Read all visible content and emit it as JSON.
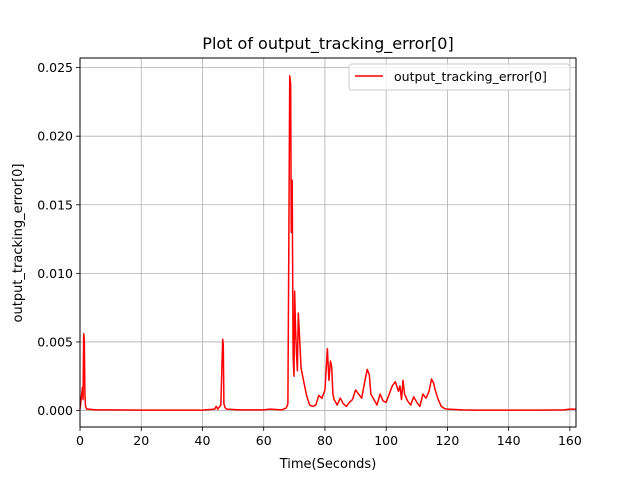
{
  "chart_data": {
    "type": "line",
    "title": "Plot of output_tracking_error[0]",
    "xlabel": "Time(Seconds)",
    "ylabel": "output_tracking_error[0]",
    "xlim": [
      0,
      162
    ],
    "ylim": [
      -0.0012,
      0.0257
    ],
    "xticks": [
      0,
      20,
      40,
      60,
      80,
      100,
      120,
      140,
      160
    ],
    "xtick_labels": [
      "0",
      "20",
      "40",
      "60",
      "80",
      "100",
      "120",
      "140",
      "160"
    ],
    "yticks": [
      0.0,
      0.005,
      0.01,
      0.015,
      0.02,
      0.025
    ],
    "ytick_labels": [
      "0.000",
      "0.005",
      "0.010",
      "0.015",
      "0.020",
      "0.025"
    ],
    "grid": true,
    "legend_position": "top-right",
    "series": [
      {
        "name": "output_tracking_error[0]",
        "color": "#ff0000",
        "x": [
          0,
          0.8,
          1.0,
          1.2,
          1.4,
          1.6,
          1.8,
          2.2,
          3,
          5,
          10,
          20,
          30,
          40,
          44,
          44.5,
          45,
          46,
          46.6,
          46.8,
          47,
          47.4,
          48,
          52,
          60,
          62,
          66,
          67.4,
          67.9,
          68.2,
          68.5,
          68.8,
          69.0,
          69.3,
          69.6,
          69.9,
          70.1,
          70.4,
          70.7,
          71.0,
          71.3,
          71.7,
          72.2,
          73,
          74,
          75,
          76,
          77,
          78,
          79,
          80,
          80.8,
          81.3,
          81.8,
          82.2,
          82.6,
          83,
          84,
          85,
          86,
          87,
          88,
          89,
          90,
          91,
          92,
          93,
          93.8,
          94.5,
          95,
          96,
          97,
          98,
          99,
          100,
          101,
          102,
          103,
          104,
          104.5,
          105,
          105.5,
          106,
          107,
          108,
          109,
          110,
          111,
          112,
          113,
          114,
          114.8,
          115.5,
          116,
          117,
          118,
          119,
          120,
          125,
          130,
          140,
          150,
          158,
          160,
          162
        ],
        "y": [
          0.0001,
          0.0017,
          0.0008,
          0.0056,
          0.0052,
          0.0012,
          0.0003,
          0.0001,
          0.0001,
          5e-05,
          5e-05,
          3e-05,
          3e-05,
          3e-05,
          0.0001,
          0.0003,
          0.0001,
          0.0004,
          0.0052,
          0.0048,
          0.0005,
          0.0002,
          0.0001,
          5e-05,
          5e-05,
          0.0001,
          5e-05,
          0.0002,
          0.0005,
          0.012,
          0.0244,
          0.0238,
          0.013,
          0.0168,
          0.004,
          0.0025,
          0.0087,
          0.006,
          0.0042,
          0.0029,
          0.0071,
          0.0054,
          0.0031,
          0.0022,
          0.0011,
          0.0004,
          0.0003,
          0.0004,
          0.0011,
          0.0009,
          0.0015,
          0.0045,
          0.0022,
          0.0036,
          0.0032,
          0.0012,
          0.0008,
          0.0004,
          0.0009,
          0.0005,
          0.0003,
          0.0006,
          0.0008,
          0.0015,
          0.0012,
          0.0009,
          0.0021,
          0.003,
          0.0026,
          0.0012,
          0.0008,
          0.0004,
          0.0012,
          0.0007,
          0.0006,
          0.0012,
          0.0018,
          0.0021,
          0.0014,
          0.0018,
          0.0008,
          0.0022,
          0.0012,
          0.0007,
          0.0004,
          0.001,
          0.0006,
          0.0003,
          0.0012,
          0.0009,
          0.0014,
          0.0023,
          0.002,
          0.0015,
          0.0008,
          0.0003,
          0.00015,
          0.0001,
          5e-05,
          3e-05,
          3e-05,
          3e-05,
          5e-05,
          0.0001,
          0.0001
        ]
      }
    ]
  }
}
